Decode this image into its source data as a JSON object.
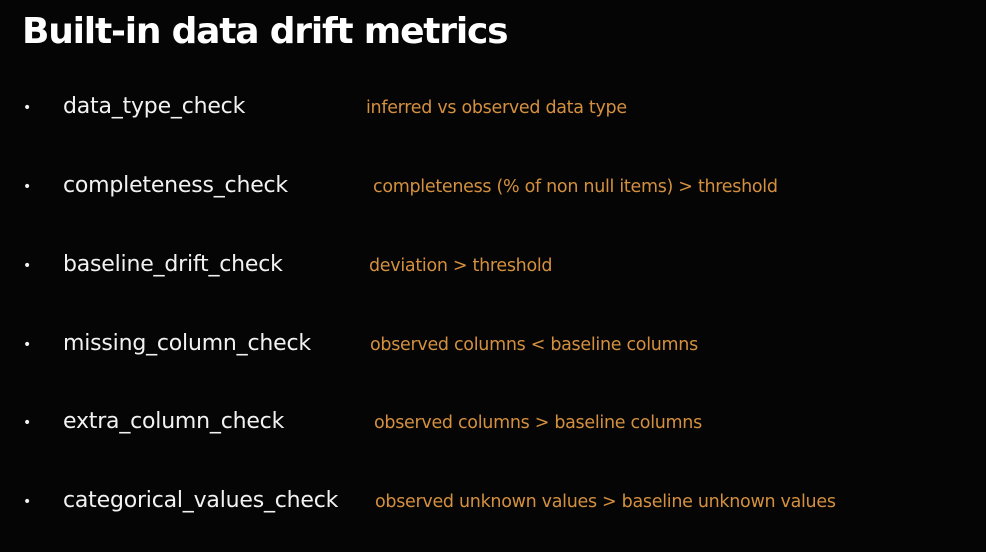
{
  "slide": {
    "title": "Built-in data drift metrics",
    "metrics": [
      {
        "name": "data_type_check",
        "description": "inferred vs observed data type"
      },
      {
        "name": "completeness_check",
        "description": "completeness (% of non null items) > threshold"
      },
      {
        "name": "baseline_drift_check",
        "description": "deviation > threshold"
      },
      {
        "name": "missing_column_check",
        "description": "observed columns < baseline columns"
      },
      {
        "name": "extra_column_check",
        "description": "observed columns > baseline columns"
      },
      {
        "name": "categorical_values_check",
        "description": "observed unknown values > baseline unknown values"
      }
    ]
  },
  "colors": {
    "background": "#050505",
    "title": "#ffffff",
    "metric_name": "#f2f2f2",
    "description": "#d4903f"
  }
}
